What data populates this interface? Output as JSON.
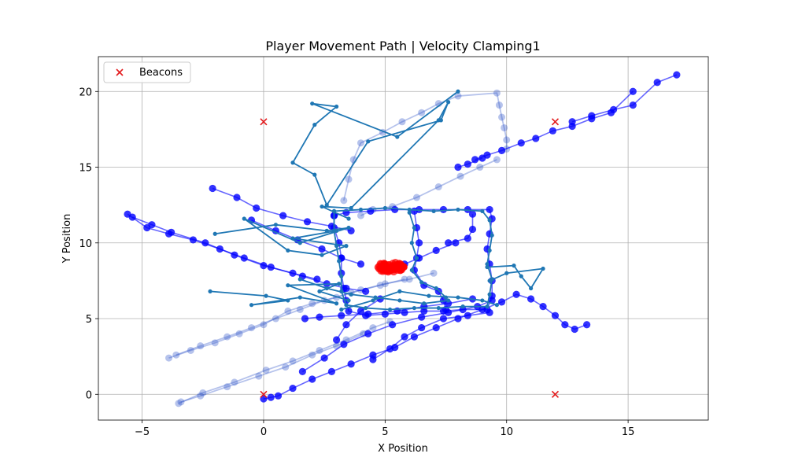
{
  "chart_data": {
    "type": "scatter",
    "title": "Player Movement Path | Velocity Clamping1",
    "xlabel": "X Position",
    "ylabel": "Y Position",
    "xlim": [
      -6.8,
      18.3
    ],
    "ylim": [
      -1.7,
      22.3
    ],
    "xticks": [
      -5,
      0,
      5,
      10,
      15
    ],
    "yticks": [
      0,
      5,
      10,
      15,
      20
    ],
    "xtick_labels": [
      "−5",
      "0",
      "5",
      "10",
      "15"
    ],
    "ytick_labels": [
      "0",
      "5",
      "10",
      "15",
      "20"
    ],
    "grid": true,
    "legend": {
      "placement": "upper-left",
      "entries": [
        {
          "label": "Beacons",
          "marker": "x",
          "color": "#e31a1c"
        }
      ]
    },
    "colors": {
      "beacon": "#e31a1c",
      "player": "#0000ff",
      "ghost": "#2f52c8",
      "estimate": "#1f77b4",
      "center": "#ff0000"
    },
    "beacons": [
      [
        0,
        0
      ],
      [
        0,
        18
      ],
      [
        12,
        18
      ],
      [
        12,
        0
      ]
    ],
    "player_paths": [
      [
        [
          0,
          -0.3
        ],
        [
          0.3,
          -0.2
        ],
        [
          0.6,
          -0.1
        ],
        [
          1.2,
          0.4
        ],
        [
          2.0,
          1.0
        ],
        [
          2.8,
          1.5
        ],
        [
          3.6,
          2.0
        ],
        [
          4.5,
          2.6
        ],
        [
          5.4,
          3.1
        ],
        [
          6.2,
          3.8
        ],
        [
          7.1,
          4.4
        ],
        [
          8.0,
          5.0
        ],
        [
          9.0,
          5.6
        ],
        [
          9.8,
          6.1
        ],
        [
          10.4,
          6.6
        ],
        [
          11.0,
          6.3
        ],
        [
          11.5,
          5.8
        ],
        [
          12.0,
          5.2
        ],
        [
          12.4,
          4.6
        ],
        [
          12.8,
          4.3
        ],
        [
          13.3,
          4.6
        ]
      ],
      [
        [
          1.6,
          1.5
        ],
        [
          2.5,
          2.4
        ],
        [
          3.3,
          3.3
        ],
        [
          4.3,
          4.0
        ],
        [
          5.3,
          4.6
        ],
        [
          6.5,
          5.1
        ],
        [
          7.6,
          5.4
        ],
        [
          8.8,
          5.8
        ],
        [
          9.4,
          6.2
        ]
      ],
      [
        [
          1.7,
          5.0
        ],
        [
          2.3,
          5.1
        ],
        [
          3.2,
          5.2
        ],
        [
          4.3,
          5.3
        ],
        [
          5.5,
          5.5
        ],
        [
          6.6,
          5.8
        ],
        [
          7.6,
          6.0
        ],
        [
          8.6,
          6.3
        ]
      ],
      [
        [
          -5.6,
          11.9
        ],
        [
          -4.8,
          11.0
        ],
        [
          -3.9,
          10.6
        ],
        [
          -2.9,
          10.2
        ],
        [
          -1.8,
          9.6
        ],
        [
          -0.8,
          9.0
        ],
        [
          0.3,
          8.4
        ],
        [
          1.6,
          7.8
        ],
        [
          2.6,
          7.3
        ],
        [
          3.4,
          7.0
        ],
        [
          4.2,
          6.8
        ]
      ],
      [
        [
          -5.4,
          11.7
        ],
        [
          -4.6,
          11.2
        ],
        [
          -3.8,
          10.7
        ],
        [
          -2.4,
          10.0
        ],
        [
          -1.2,
          9.2
        ],
        [
          0.0,
          8.5
        ],
        [
          1.2,
          8.0
        ],
        [
          2.2,
          7.6
        ]
      ],
      [
        [
          -2.1,
          13.6
        ],
        [
          -1.1,
          13.0
        ],
        [
          -0.3,
          12.3
        ],
        [
          0.8,
          11.8
        ],
        [
          1.8,
          11.4
        ],
        [
          2.8,
          11.1
        ],
        [
          3.6,
          10.8
        ]
      ],
      [
        [
          -0.5,
          11.5
        ],
        [
          0.5,
          10.8
        ],
        [
          1.4,
          10.2
        ],
        [
          2.4,
          9.6
        ],
        [
          3.2,
          9.0
        ],
        [
          4.0,
          8.6
        ]
      ],
      [
        [
          3.0,
          3.6
        ],
        [
          3.4,
          4.6
        ],
        [
          4.0,
          5.5
        ],
        [
          4.8,
          6.3
        ]
      ],
      [
        [
          4.5,
          2.3
        ],
        [
          5.2,
          3.0
        ],
        [
          5.8,
          3.8
        ],
        [
          6.5,
          4.4
        ],
        [
          7.4,
          5.0
        ],
        [
          8.4,
          5.2
        ],
        [
          9.3,
          5.4
        ]
      ],
      [
        [
          2.9,
          11.8
        ],
        [
          2.9,
          11.0
        ],
        [
          3.1,
          10.0
        ],
        [
          3.2,
          9.0
        ],
        [
          3.2,
          8.0
        ],
        [
          3.3,
          7.0
        ],
        [
          3.4,
          6.2
        ],
        [
          3.5,
          5.5
        ],
        [
          4.2,
          5.2
        ],
        [
          5.0,
          5.3
        ],
        [
          5.8,
          5.4
        ],
        [
          6.6,
          5.5
        ],
        [
          7.4,
          5.5
        ],
        [
          8.2,
          5.6
        ],
        [
          9.2,
          5.6
        ],
        [
          9.4,
          6.5
        ],
        [
          9.4,
          7.5
        ],
        [
          9.3,
          8.6
        ],
        [
          9.2,
          9.6
        ],
        [
          9.3,
          10.6
        ],
        [
          9.4,
          11.6
        ],
        [
          9.3,
          12.2
        ],
        [
          8.4,
          12.2
        ],
        [
          7.4,
          12.2
        ],
        [
          6.4,
          12.2
        ],
        [
          5.4,
          12.2
        ],
        [
          4.4,
          12.1
        ],
        [
          3.4,
          12.0
        ],
        [
          2.9,
          11.8
        ]
      ],
      [
        [
          6.2,
          12.1
        ],
        [
          6.3,
          11.0
        ],
        [
          6.4,
          10.0
        ],
        [
          6.3,
          9.0
        ],
        [
          6.2,
          8.2
        ],
        [
          6.6,
          7.2
        ],
        [
          7.2,
          6.8
        ],
        [
          7.4,
          6.2
        ],
        [
          7.5,
          5.6
        ]
      ],
      [
        [
          12.7,
          18.0
        ],
        [
          13.5,
          18.4
        ],
        [
          14.4,
          18.8
        ],
        [
          15.2,
          19.1
        ],
        [
          16.2,
          20.6
        ],
        [
          17.0,
          21.1
        ]
      ],
      [
        [
          8.7,
          15.5
        ],
        [
          9.2,
          15.8
        ],
        [
          9.8,
          16.1
        ],
        [
          10.6,
          16.6
        ],
        [
          11.2,
          16.9
        ],
        [
          11.9,
          17.4
        ],
        [
          12.7,
          17.7
        ],
        [
          13.5,
          18.2
        ],
        [
          14.3,
          18.6
        ],
        [
          15.2,
          20.0
        ]
      ],
      [
        [
          8.0,
          15.0
        ],
        [
          8.4,
          15.2
        ],
        [
          9.0,
          15.6
        ]
      ],
      [
        [
          7.9,
          10.0
        ],
        [
          7.1,
          9.5
        ],
        [
          6.4,
          9.0
        ],
        [
          5.8,
          8.6
        ],
        [
          5.4,
          8.3
        ]
      ],
      [
        [
          8.6,
          11.9
        ],
        [
          8.6,
          10.9
        ],
        [
          8.4,
          10.3
        ],
        [
          7.6,
          10.0
        ]
      ]
    ],
    "ghost_paths": [
      [
        [
          -3.5,
          -0.6
        ],
        [
          -2.5,
          0.1
        ],
        [
          -1.2,
          0.8
        ],
        [
          0.1,
          1.6
        ],
        [
          1.2,
          2.2
        ],
        [
          2.3,
          2.9
        ],
        [
          3.4,
          3.6
        ],
        [
          4.5,
          4.4
        ],
        [
          5.2,
          4.8
        ]
      ],
      [
        [
          -3.4,
          -0.5
        ],
        [
          -2.6,
          -0.1
        ],
        [
          -1.5,
          0.5
        ],
        [
          -0.2,
          1.2
        ],
        [
          0.9,
          1.8
        ],
        [
          2.0,
          2.6
        ],
        [
          3.0,
          3.2
        ],
        [
          4.1,
          4.0
        ]
      ],
      [
        [
          -3.9,
          2.4
        ],
        [
          -3.0,
          2.9
        ],
        [
          -2.0,
          3.4
        ],
        [
          -1.0,
          4.0
        ],
        [
          0.0,
          4.6
        ],
        [
          1.0,
          5.5
        ],
        [
          2.0,
          6.0
        ],
        [
          3.0,
          6.4
        ],
        [
          4.0,
          6.9
        ],
        [
          5.0,
          7.3
        ],
        [
          6.0,
          7.6
        ],
        [
          7.0,
          8.0
        ]
      ],
      [
        [
          -3.6,
          2.6
        ],
        [
          -2.6,
          3.2
        ],
        [
          -1.5,
          3.8
        ],
        [
          -0.5,
          4.4
        ],
        [
          0.5,
          5.0
        ],
        [
          1.5,
          5.6
        ],
        [
          2.5,
          6.2
        ],
        [
          3.6,
          6.7
        ],
        [
          4.8,
          7.2
        ],
        [
          5.8,
          7.6
        ]
      ],
      [
        [
          3.3,
          12.8
        ],
        [
          3.5,
          14.2
        ],
        [
          3.7,
          15.5
        ],
        [
          4.0,
          16.6
        ],
        [
          4.9,
          17.3
        ],
        [
          5.7,
          18.0
        ],
        [
          6.5,
          18.6
        ],
        [
          7.2,
          19.2
        ],
        [
          8.0,
          19.7
        ],
        [
          9.6,
          19.9
        ],
        [
          9.7,
          19.1
        ],
        [
          9.8,
          18.3
        ],
        [
          9.9,
          17.6
        ],
        [
          10.0,
          16.8
        ],
        [
          10.0,
          16.2
        ]
      ],
      [
        [
          4.0,
          11.8
        ],
        [
          4.5,
          12.2
        ],
        [
          5.3,
          12.4
        ],
        [
          6.3,
          13.0
        ],
        [
          7.2,
          13.7
        ],
        [
          8.1,
          14.4
        ],
        [
          8.9,
          15.0
        ],
        [
          9.6,
          15.5
        ]
      ]
    ],
    "estimated_paths": [
      [
        [
          8.0,
          20.0
        ],
        [
          5.5,
          17.0
        ],
        [
          2.0,
          19.2
        ],
        [
          3.0,
          19.0
        ],
        [
          2.1,
          17.8
        ],
        [
          1.2,
          15.3
        ],
        [
          2.1,
          14.5
        ],
        [
          2.6,
          12.5
        ],
        [
          4.3,
          16.7
        ],
        [
          7.3,
          18.1
        ],
        [
          7.6,
          19.3
        ],
        [
          7.2,
          18.1
        ],
        [
          3.6,
          12.3
        ],
        [
          2.4,
          12.4
        ],
        [
          3.5,
          11.6
        ]
      ],
      [
        [
          -2.0,
          10.6
        ],
        [
          0.5,
          11.2
        ],
        [
          2.6,
          10.8
        ],
        [
          3.5,
          11.0
        ],
        [
          1.5,
          10.0
        ],
        [
          -0.8,
          11.6
        ],
        [
          1.0,
          9.5
        ],
        [
          2.4,
          9.2
        ],
        [
          3.4,
          9.8
        ],
        [
          1.2,
          10.3
        ],
        [
          3.0,
          10.8
        ]
      ],
      [
        [
          -2.2,
          6.8
        ],
        [
          0.1,
          6.5
        ],
        [
          1.0,
          6.2
        ],
        [
          -0.5,
          5.9
        ],
        [
          1.5,
          6.4
        ],
        [
          3.0,
          6.0
        ],
        [
          1.0,
          7.2
        ],
        [
          3.1,
          7.3
        ],
        [
          2.3,
          6.8
        ],
        [
          3.5,
          6.2
        ]
      ],
      [
        [
          2.9,
          12.1
        ],
        [
          4.0,
          12.2
        ],
        [
          5.0,
          12.3
        ],
        [
          6.0,
          12.2
        ],
        [
          7.0,
          12.1
        ],
        [
          8.0,
          12.2
        ],
        [
          9.0,
          12.1
        ],
        [
          9.3,
          11.5
        ],
        [
          9.4,
          10.5
        ],
        [
          9.3,
          9.5
        ],
        [
          9.2,
          8.6
        ],
        [
          9.4,
          7.6
        ],
        [
          9.3,
          6.6
        ],
        [
          9.2,
          5.8
        ],
        [
          8.2,
          5.8
        ],
        [
          7.2,
          5.7
        ],
        [
          6.2,
          5.7
        ],
        [
          5.2,
          5.6
        ],
        [
          4.2,
          5.7
        ],
        [
          3.4,
          5.9
        ],
        [
          3.2,
          6.8
        ],
        [
          3.2,
          7.8
        ],
        [
          3.1,
          8.8
        ],
        [
          3.0,
          9.8
        ],
        [
          2.9,
          10.8
        ],
        [
          2.9,
          12.1
        ]
      ],
      [
        [
          6.0,
          12.0
        ],
        [
          6.2,
          11.0
        ],
        [
          6.1,
          10.0
        ],
        [
          6.3,
          9.0
        ],
        [
          6.1,
          8.2
        ],
        [
          6.5,
          7.4
        ],
        [
          7.1,
          7.0
        ],
        [
          7.5,
          6.4
        ]
      ],
      [
        [
          9.2,
          8.4
        ],
        [
          10.3,
          8.5
        ],
        [
          10.6,
          7.8
        ],
        [
          11.0,
          7.0
        ],
        [
          11.5,
          8.3
        ],
        [
          10.0,
          8.0
        ],
        [
          9.3,
          7.5
        ]
      ],
      [
        [
          3.2,
          5.6
        ],
        [
          4.5,
          6.2
        ],
        [
          5.6,
          6.8
        ],
        [
          6.8,
          6.5
        ],
        [
          8.0,
          6.4
        ],
        [
          9.0,
          6.2
        ],
        [
          9.6,
          5.9
        ]
      ],
      [
        [
          1.5,
          7.6
        ],
        [
          2.6,
          7.0
        ],
        [
          3.6,
          6.6
        ],
        [
          4.6,
          6.4
        ],
        [
          5.6,
          6.2
        ],
        [
          6.6,
          6.0
        ],
        [
          7.6,
          6.2
        ]
      ]
    ],
    "center_cluster": {
      "center": [
        5.2,
        8.4
      ],
      "spread": [
        0.6,
        0.35
      ],
      "count": 70
    }
  }
}
